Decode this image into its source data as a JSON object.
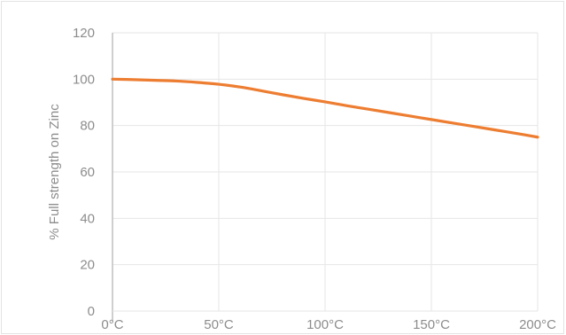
{
  "chart_data": {
    "type": "line",
    "title": "",
    "xlabel": "",
    "ylabel": "% Full strength on Zinc",
    "x": [
      0,
      10,
      20,
      30,
      40,
      50,
      60,
      70,
      80,
      90,
      100,
      110,
      120,
      130,
      140,
      150,
      160,
      170,
      180,
      190,
      200
    ],
    "x_tick_values": [
      0,
      50,
      100,
      150,
      200
    ],
    "x_tick_labels": [
      "0°C",
      "50°C",
      "100°C",
      "150°C",
      "200°C"
    ],
    "xlim": [
      0,
      200
    ],
    "ylim": [
      0,
      120
    ],
    "y_ticks": [
      0,
      20,
      40,
      60,
      80,
      100,
      120
    ],
    "grid": true,
    "legend": "none",
    "series": [
      {
        "values": [
          100,
          99.8,
          99.5,
          99.2,
          98.6,
          97.8,
          96.6,
          95,
          93.3,
          91.7,
          90.2,
          88.6,
          87.1,
          85.6,
          84.1,
          82.6,
          81.1,
          79.6,
          78.1,
          76.6,
          75
        ],
        "color": "#ed7d31"
      }
    ],
    "colors": {
      "line": "#ed7d31",
      "grid": "#e6e6e6",
      "axis": "#bfbfbf",
      "text": "#8c8c8c"
    }
  }
}
